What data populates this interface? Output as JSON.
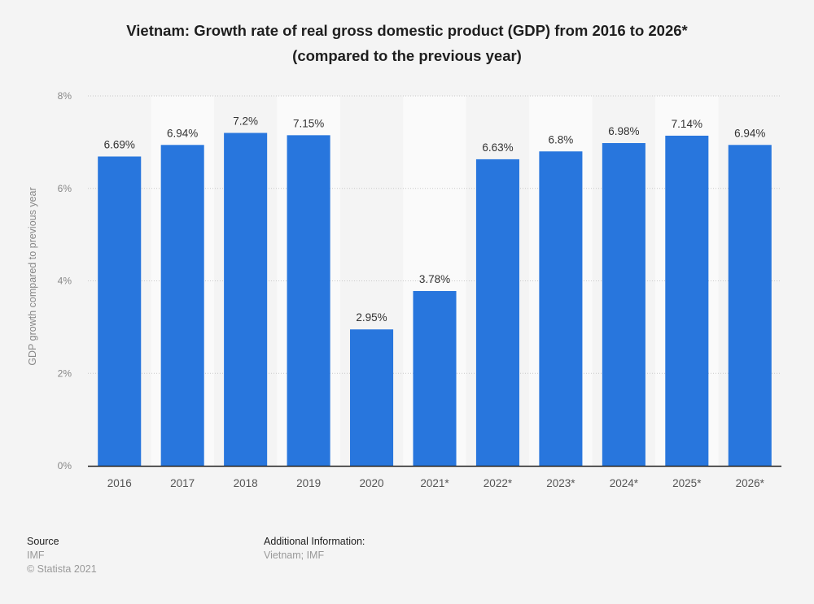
{
  "chart_data": {
    "type": "bar",
    "title": "Vietnam: Growth rate of real gross domestic product (GDP) from 2016 to 2026*",
    "subtitle": "(compared to the previous year)",
    "xlabel": "",
    "ylabel": "GDP growth compared to previous year",
    "categories": [
      "2016",
      "2017",
      "2018",
      "2019",
      "2020",
      "2021*",
      "2022*",
      "2023*",
      "2024*",
      "2025*",
      "2026*"
    ],
    "values": [
      6.69,
      6.94,
      7.2,
      7.15,
      2.95,
      3.78,
      6.63,
      6.8,
      6.98,
      7.14,
      6.94
    ],
    "data_labels": [
      "6.69%",
      "6.94%",
      "7.2%",
      "7.15%",
      "2.95%",
      "3.78%",
      "6.63%",
      "6.8%",
      "6.98%",
      "7.14%",
      "6.94%"
    ],
    "ylim": [
      0,
      8
    ],
    "yticks": [
      0,
      2,
      4,
      6,
      8
    ],
    "ytick_labels": [
      "0%",
      "2%",
      "4%",
      "6%",
      "8%"
    ],
    "grid": true,
    "bar_color": "#2876dd"
  },
  "footer": {
    "source_heading": "Source",
    "source_lines": [
      "IMF",
      "© Statista 2021"
    ],
    "additional_heading": "Additional Information:",
    "additional_text": "Vietnam; IMF"
  }
}
